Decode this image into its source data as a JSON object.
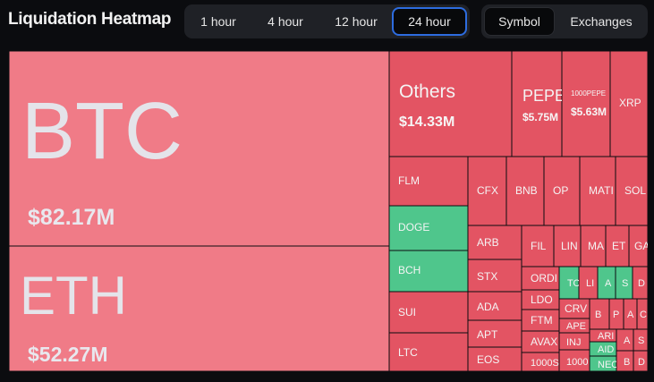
{
  "header": {
    "title": "Liquidation Heatmap",
    "time_tabs": [
      {
        "label": "1 hour",
        "active": false
      },
      {
        "label": "4 hour",
        "active": false
      },
      {
        "label": "12 hour",
        "active": false
      },
      {
        "label": "24 hour",
        "active": true
      }
    ],
    "view_tabs": [
      {
        "label": "Symbol",
        "active": true
      },
      {
        "label": "Exchanges",
        "active": false
      }
    ]
  },
  "colors": {
    "background": "#0b0c0f",
    "long_red": "#e35463",
    "light_red": "#f07b87",
    "short_green": "#4fc68c",
    "accent_blue": "#2d6cdf"
  },
  "chart_data": {
    "type": "treemap",
    "unit": "USD",
    "items": [
      {
        "symbol": "BTC",
        "value_label": "$82.17M",
        "value": 82.17
      },
      {
        "symbol": "ETH",
        "value_label": "$52.27M",
        "value": 52.27
      },
      {
        "symbol": "Others",
        "value_label": "$14.33M",
        "value": 14.33
      },
      {
        "symbol": "PEPE",
        "value_label": "$5.75M",
        "value": 5.75
      },
      {
        "symbol": "1000PEPE",
        "value_label": "$5.63M",
        "value": 5.63
      },
      {
        "symbol": "XRP"
      },
      {
        "symbol": "FLM"
      },
      {
        "symbol": "CFX"
      },
      {
        "symbol": "BNB"
      },
      {
        "symbol": "OP"
      },
      {
        "symbol": "MATI"
      },
      {
        "symbol": "SOL"
      },
      {
        "symbol": "DOGE"
      },
      {
        "symbol": "ARB"
      },
      {
        "symbol": "FIL"
      },
      {
        "symbol": "LIN"
      },
      {
        "symbol": "MA"
      },
      {
        "symbol": "ET"
      },
      {
        "symbol": "GA"
      },
      {
        "symbol": "BCH"
      },
      {
        "symbol": "STX"
      },
      {
        "symbol": "ORDI"
      },
      {
        "symbol": "TO"
      },
      {
        "symbol": "LI"
      },
      {
        "symbol": "A"
      },
      {
        "symbol": "S"
      },
      {
        "symbol": "D"
      },
      {
        "symbol": "SUI"
      },
      {
        "symbol": "ADA"
      },
      {
        "symbol": "LDO"
      },
      {
        "symbol": "CRV"
      },
      {
        "symbol": "B"
      },
      {
        "symbol": "P"
      },
      {
        "symbol": "A"
      },
      {
        "symbol": "C"
      },
      {
        "symbol": "FTM"
      },
      {
        "symbol": "APE"
      },
      {
        "symbol": "APT"
      },
      {
        "symbol": "ARI"
      },
      {
        "symbol": "A"
      },
      {
        "symbol": "S"
      },
      {
        "symbol": "LTC"
      },
      {
        "symbol": "AVAX"
      },
      {
        "symbol": "INJ"
      },
      {
        "symbol": "AID"
      },
      {
        "symbol": "EOS"
      },
      {
        "symbol": "1000S"
      },
      {
        "symbol": "1000"
      },
      {
        "symbol": "NEO"
      },
      {
        "symbol": "B"
      },
      {
        "symbol": "D"
      }
    ]
  }
}
